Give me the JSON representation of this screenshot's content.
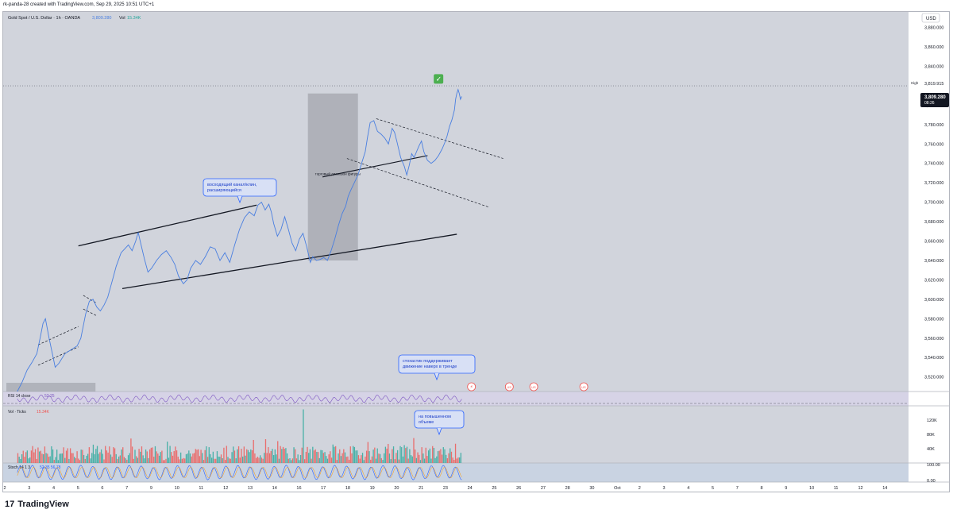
{
  "header": {
    "published_line": "rk-panda-28 created with TradingView.com, Sep 29, 2025 10:51 UTC+1"
  },
  "footer": {
    "logo_glyph": "17",
    "brand": "TradingView"
  },
  "colors": {
    "price_line": "#4a7fe0",
    "up_bar": "#26a69a",
    "down_bar": "#ef5350",
    "rsi_line": "#7e57c2",
    "stoch_k": "#2962ff",
    "stoch_d": "#ff9800",
    "callout_border": "#2962ff",
    "check": "#4caf50"
  },
  "chart_data": {
    "type": "line",
    "instrument": {
      "legend_title": "Gold Spot / U.S. Dollar · 1h · OANDA",
      "last_value": "3,809.280",
      "vol_label": "Vol",
      "vol_value": "15.34K"
    },
    "currency_button": "USD",
    "price_axis": {
      "ticks": [
        3880,
        3860,
        3840,
        3800,
        3780,
        3760,
        3740,
        3720,
        3700,
        3680,
        3660,
        3640,
        3620,
        3600,
        3580,
        3560,
        3540,
        3520
      ],
      "tick_labels": [
        "3,880.000",
        "3,860.000",
        "3,840.000",
        "3,800.000",
        "3,780.000",
        "3,760.000",
        "3,740.000",
        "3,720.000",
        "3,700.000",
        "3,680.000",
        "3,660.000",
        "3,640.000",
        "3,620.000",
        "3,600.000",
        "3,580.000",
        "3,560.000",
        "3,540.000",
        "3,520.000"
      ],
      "ylim": [
        3505,
        3896
      ],
      "high_label": "High",
      "high_value": "3,819.915",
      "high_level": 3819.915,
      "last_price": 3809.28,
      "last_price_label": "3,809.280",
      "countdown": "08:26"
    },
    "time_axis": {
      "labels": [
        "2",
        "3",
        "4",
        "5",
        "6",
        "7",
        "9",
        "10",
        "11",
        "12",
        "13",
        "14",
        "16",
        "17",
        "18",
        "19",
        "20",
        "21",
        "23",
        "24",
        "25",
        "26",
        "27",
        "28",
        "30",
        "Oct",
        "2",
        "3",
        "4",
        "5",
        "7",
        "8",
        "9",
        "10",
        "11",
        "12",
        "14"
      ],
      "positions": [
        1,
        2,
        3,
        4,
        5,
        6,
        7,
        8,
        9,
        10,
        11,
        12,
        13,
        14,
        15,
        16,
        17,
        18,
        19,
        20,
        21,
        22,
        23,
        24,
        25,
        26,
        27,
        28,
        29,
        30,
        31,
        32,
        33,
        34,
        35,
        36,
        37
      ],
      "xlim": [
        0.92,
        38.0
      ]
    },
    "price_path": [
      [
        1.5,
        3505
      ],
      [
        1.7,
        3515
      ],
      [
        1.9,
        3527
      ],
      [
        2.1,
        3535
      ],
      [
        2.3,
        3544
      ],
      [
        2.45,
        3562
      ],
      [
        2.55,
        3575
      ],
      [
        2.65,
        3580
      ],
      [
        2.8,
        3560
      ],
      [
        2.9,
        3548
      ],
      [
        3.05,
        3530
      ],
      [
        3.2,
        3534
      ],
      [
        3.45,
        3544
      ],
      [
        3.7,
        3548
      ],
      [
        3.95,
        3552
      ],
      [
        4.1,
        3560
      ],
      [
        4.3,
        3585
      ],
      [
        4.45,
        3598
      ],
      [
        4.6,
        3600
      ],
      [
        4.75,
        3592
      ],
      [
        4.9,
        3588
      ],
      [
        5.05,
        3594
      ],
      [
        5.2,
        3602
      ],
      [
        5.4,
        3620
      ],
      [
        5.55,
        3634
      ],
      [
        5.75,
        3648
      ],
      [
        5.9,
        3652
      ],
      [
        6.05,
        3656
      ],
      [
        6.2,
        3650
      ],
      [
        6.35,
        3660
      ],
      [
        6.45,
        3669
      ],
      [
        6.55,
        3658
      ],
      [
        6.7,
        3642
      ],
      [
        6.85,
        3628
      ],
      [
        7.0,
        3632
      ],
      [
        7.2,
        3640
      ],
      [
        7.4,
        3646
      ],
      [
        7.6,
        3650
      ],
      [
        7.8,
        3643
      ],
      [
        7.95,
        3636
      ],
      [
        8.1,
        3624
      ],
      [
        8.3,
        3616
      ],
      [
        8.45,
        3620
      ],
      [
        8.6,
        3632
      ],
      [
        8.8,
        3640
      ],
      [
        9.0,
        3636
      ],
      [
        9.2,
        3644
      ],
      [
        9.4,
        3654
      ],
      [
        9.6,
        3652
      ],
      [
        9.8,
        3640
      ],
      [
        10.0,
        3648
      ],
      [
        10.2,
        3638
      ],
      [
        10.4,
        3656
      ],
      [
        10.6,
        3672
      ],
      [
        10.8,
        3684
      ],
      [
        11.0,
        3690
      ],
      [
        11.2,
        3686
      ],
      [
        11.35,
        3697
      ],
      [
        11.5,
        3700
      ],
      [
        11.65,
        3692
      ],
      [
        11.8,
        3698
      ],
      [
        11.9,
        3690
      ],
      [
        12.0,
        3678
      ],
      [
        12.15,
        3665
      ],
      [
        12.3,
        3672
      ],
      [
        12.45,
        3685
      ],
      [
        12.6,
        3672
      ],
      [
        12.75,
        3658
      ],
      [
        12.9,
        3650
      ],
      [
        13.05,
        3662
      ],
      [
        13.2,
        3668
      ],
      [
        13.35,
        3654
      ],
      [
        13.5,
        3638
      ],
      [
        13.6,
        3644
      ],
      [
        13.75,
        3640
      ],
      [
        13.9,
        3641
      ],
      [
        14.05,
        3643
      ],
      [
        14.2,
        3640
      ],
      [
        14.35,
        3650
      ],
      [
        14.5,
        3662
      ],
      [
        14.65,
        3676
      ],
      [
        14.8,
        3688
      ],
      [
        14.95,
        3696
      ],
      [
        15.05,
        3706
      ],
      [
        15.15,
        3712
      ],
      [
        15.3,
        3720
      ],
      [
        15.45,
        3728
      ],
      [
        15.6,
        3740
      ],
      [
        15.75,
        3752
      ],
      [
        15.85,
        3768
      ],
      [
        15.95,
        3782
      ],
      [
        16.1,
        3784
      ],
      [
        16.25,
        3773
      ],
      [
        16.4,
        3770
      ],
      [
        16.55,
        3766
      ],
      [
        16.7,
        3760
      ],
      [
        16.85,
        3776
      ],
      [
        16.95,
        3772
      ],
      [
        17.05,
        3762
      ],
      [
        17.2,
        3746
      ],
      [
        17.35,
        3737
      ],
      [
        17.45,
        3728
      ],
      [
        17.55,
        3738
      ],
      [
        17.65,
        3750
      ],
      [
        17.75,
        3746
      ],
      [
        17.85,
        3752
      ],
      [
        17.95,
        3758
      ],
      [
        18.05,
        3763
      ],
      [
        18.15,
        3752
      ],
      [
        18.3,
        3743
      ],
      [
        18.45,
        3740
      ],
      [
        18.6,
        3743
      ],
      [
        18.75,
        3748
      ],
      [
        18.9,
        3755
      ],
      [
        19.0,
        3761
      ],
      [
        19.1,
        3768
      ],
      [
        19.2,
        3778
      ],
      [
        19.3,
        3785
      ],
      [
        19.4,
        3795
      ],
      [
        19.45,
        3806
      ],
      [
        19.5,
        3812
      ],
      [
        19.55,
        3816
      ],
      [
        19.6,
        3812
      ],
      [
        19.65,
        3806
      ],
      [
        19.7,
        3809
      ]
    ],
    "rsi_legend": "RSI 14 close",
    "rsi_value": "52.25",
    "volume_legend": "Vol · Ticks",
    "volume_value": "15.34K",
    "volume_axis": {
      "ticks": [
        120,
        80,
        40
      ],
      "tick_labels": [
        "120K",
        "80K",
        "40K"
      ],
      "ylim": [
        0,
        160
      ]
    },
    "stoch_legend": "Stoch 14 1 3",
    "stoch_values": "52.35 56.78",
    "stoch_axis": {
      "ticks": [
        100,
        0
      ],
      "tick_labels": [
        "100.00",
        "0.00"
      ],
      "ylim": [
        0,
        100
      ]
    },
    "annotations": {
      "channel_callout": "восходящий канал/клин,\nрасширяющийся",
      "stoch_callout": "стохастик поддерживает\nдвижение наверх в тренде",
      "volume_callout": "на повышенном\nобъеме",
      "range_label": "торговый диапазон фигуры",
      "check_glyph": "✓"
    },
    "drawings": {
      "channel_upper": [
        [
          4.0,
          3655
        ],
        [
          11.3,
          3697
        ]
      ],
      "channel_lower": [
        [
          5.8,
          3611
        ],
        [
          19.5,
          3667
        ]
      ],
      "breakout_line": [
        [
          14.0,
          3726
        ],
        [
          18.3,
          3748
        ]
      ],
      "flag_upper": [
        [
          16.2,
          3786
        ],
        [
          21.4,
          3745
        ]
      ],
      "flag_lower": [
        [
          15.0,
          3745
        ],
        [
          20.8,
          3695
        ]
      ],
      "small_channel_upper": [
        [
          2.35,
          3553
        ],
        [
          4.0,
          3572
        ]
      ],
      "small_channel_lower": [
        [
          2.35,
          3532
        ],
        [
          4.0,
          3551
        ]
      ],
      "small_flag_upper": [
        [
          4.2,
          3604
        ],
        [
          4.75,
          3596
        ]
      ],
      "small_flag_lower": [
        [
          4.2,
          3590
        ],
        [
          4.75,
          3583
        ]
      ],
      "range_box": {
        "x": [
          13.4,
          15.45
        ],
        "y": [
          3640,
          3812
        ]
      },
      "base_box": {
        "x": [
          1.05,
          4.7
        ],
        "y": [
          3505,
          3514
        ]
      }
    },
    "event_markers": [
      {
        "x": 20.1,
        "glyph": "⚡"
      },
      {
        "x": 21.65,
        "glyph": "US"
      },
      {
        "x": 22.65,
        "glyph": "US"
      },
      {
        "x": 24.7,
        "glyph": "US"
      }
    ]
  }
}
